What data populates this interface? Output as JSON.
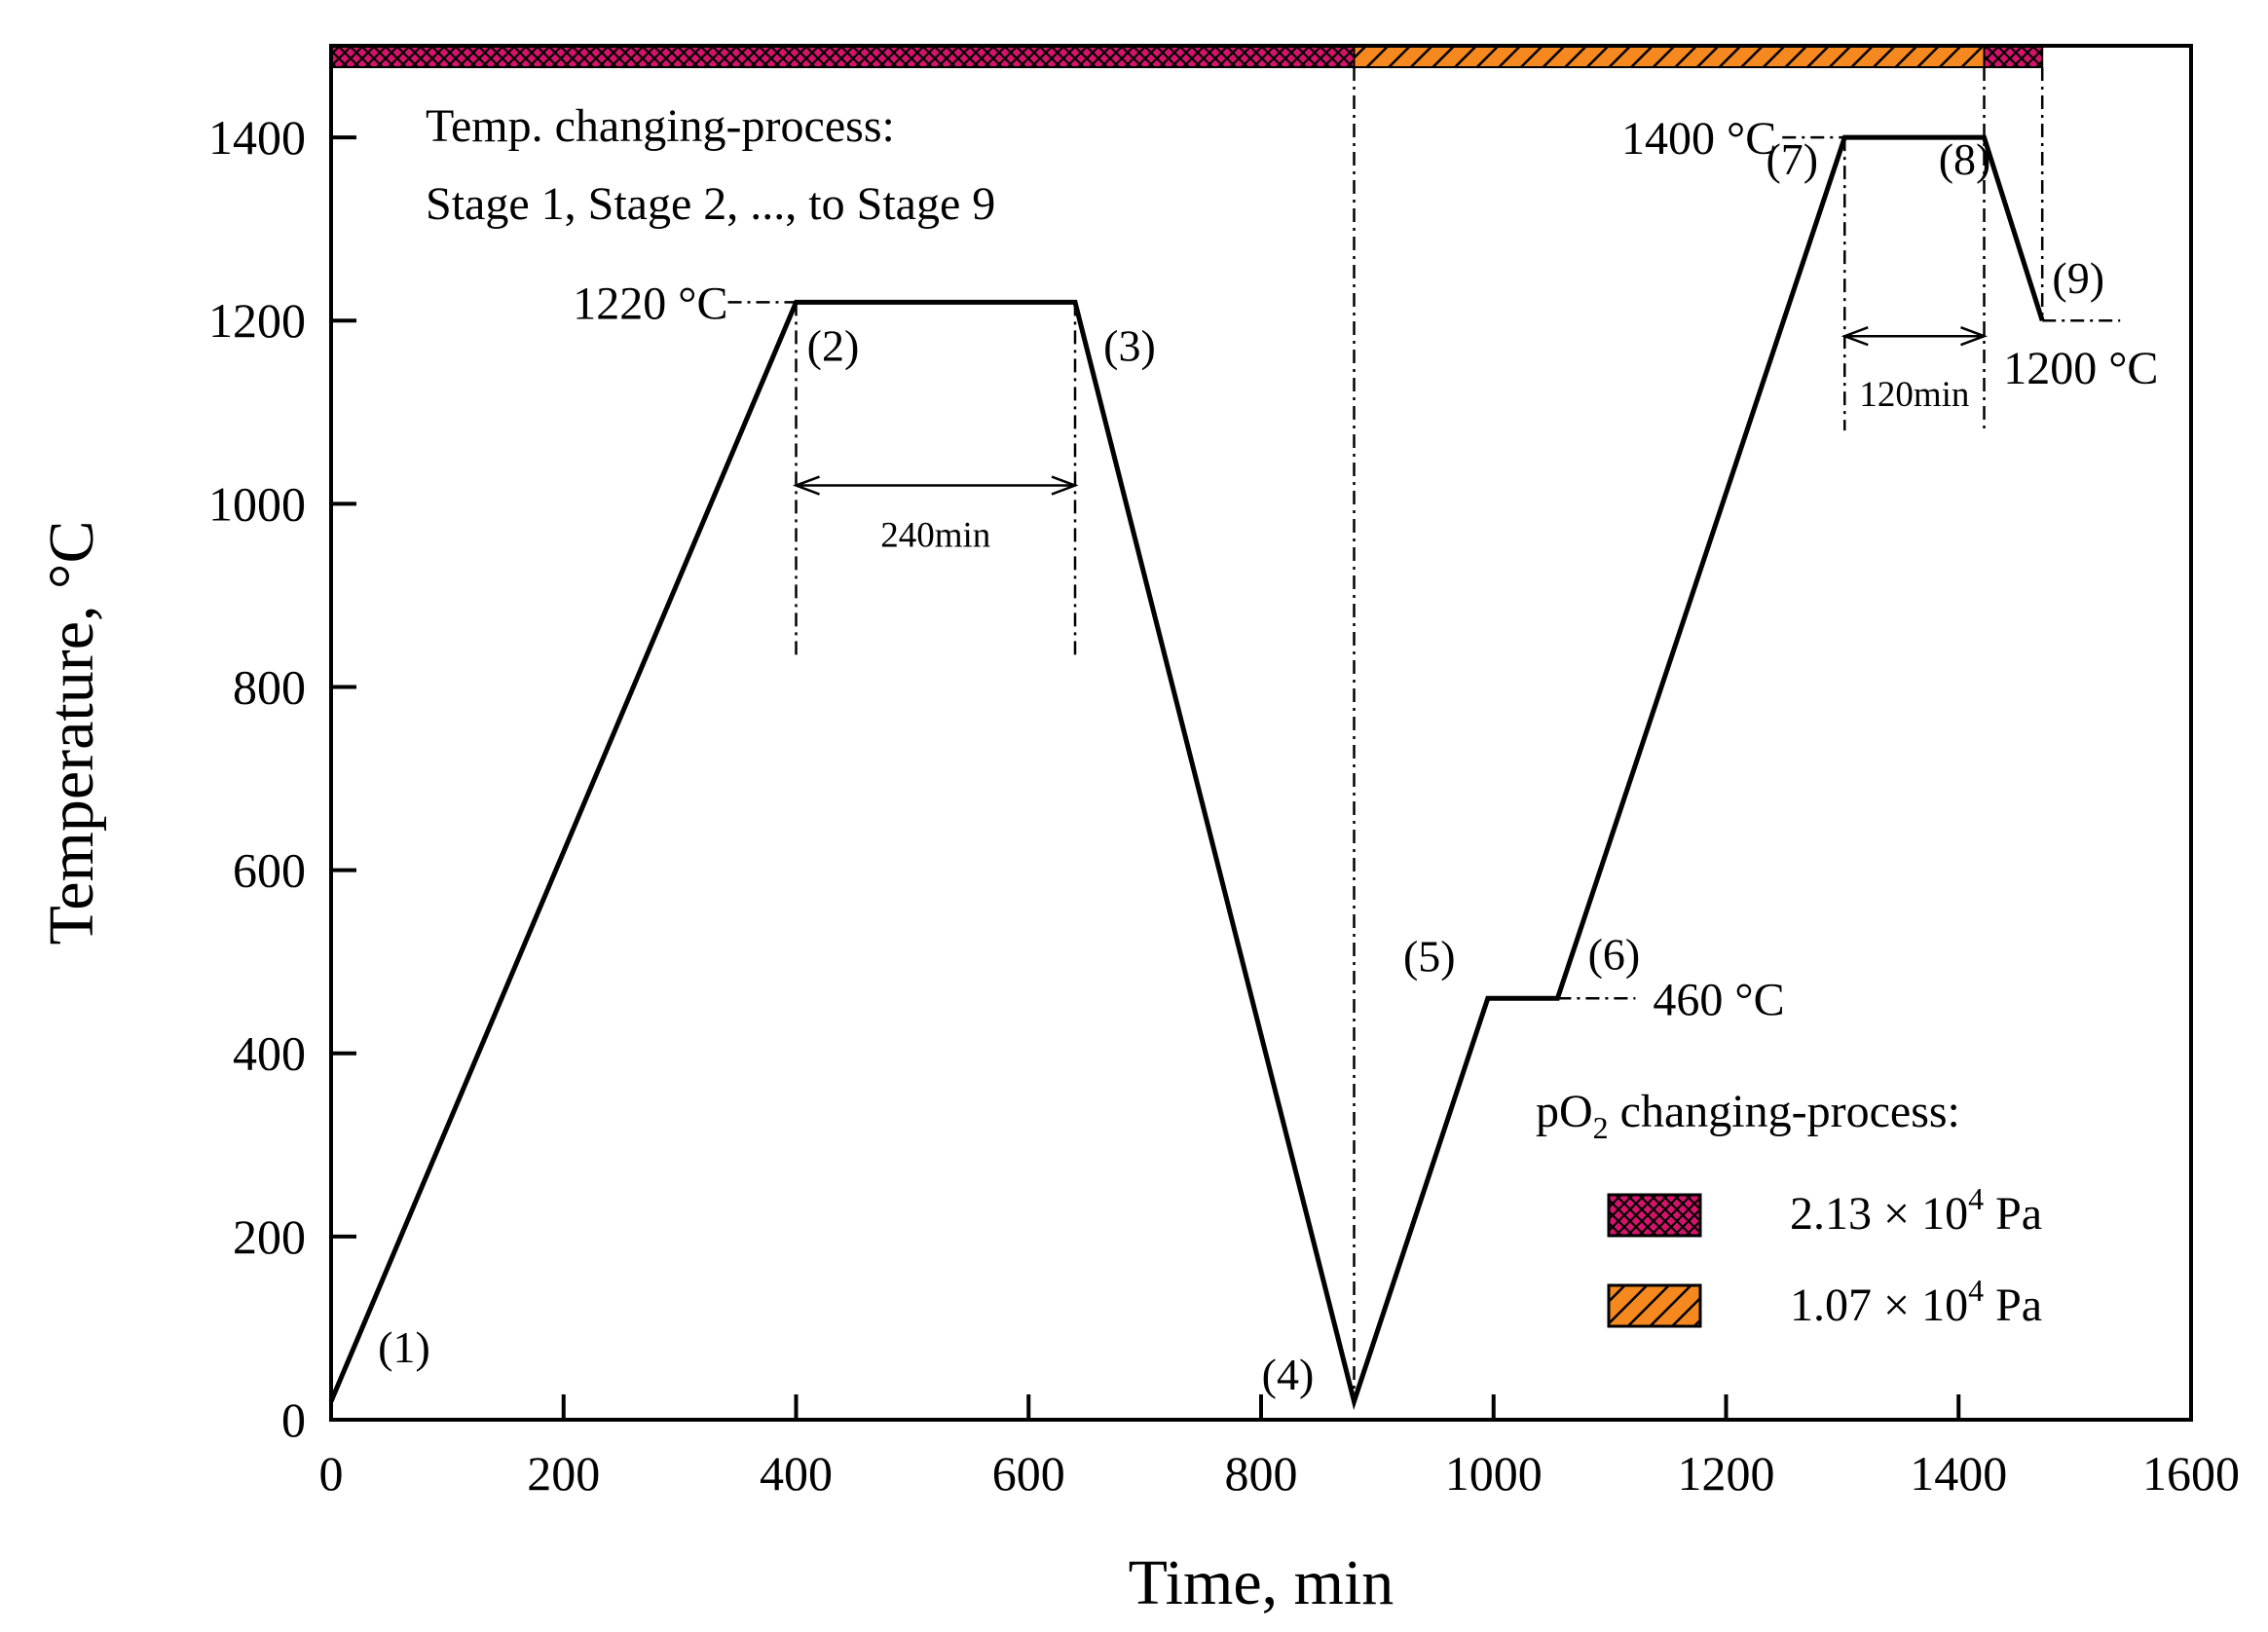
{
  "colors": {
    "hatch_a": "#d6136b",
    "hatch_b": "#f5891f",
    "line": "#000000"
  },
  "chart_data": {
    "type": "line",
    "xlabel": "Time, min",
    "ylabel": "Temperature, °C",
    "xlim": [
      0,
      1600
    ],
    "ylim": [
      0,
      1500
    ],
    "xticks": [
      0,
      200,
      400,
      600,
      800,
      1000,
      1200,
      1400,
      1600
    ],
    "yticks": [
      0,
      200,
      400,
      600,
      800,
      1000,
      1200,
      1400
    ],
    "grid": false,
    "series": [
      {
        "x": [
          0,
          400,
          640,
          880,
          995,
          1055,
          1302,
          1422,
          1472
        ],
        "y": [
          20,
          1220,
          1220,
          20,
          460,
          460,
          1400,
          1400,
          1200
        ]
      }
    ],
    "stage_labels": [
      {
        "text": "(1)",
        "x": 0,
        "y": 20
      },
      {
        "text": "(2)",
        "x": 400,
        "y": 1220
      },
      {
        "text": "(3)",
        "x": 640,
        "y": 1220
      },
      {
        "text": "(4)",
        "x": 880,
        "y": 20
      },
      {
        "text": "(5)",
        "x": 995,
        "y": 460
      },
      {
        "text": "(6)",
        "x": 1055,
        "y": 460
      },
      {
        "text": "(7)",
        "x": 1302,
        "y": 1400
      },
      {
        "text": "(8)",
        "x": 1422,
        "y": 1400
      },
      {
        "text": "(9)",
        "x": 1472,
        "y": 1200
      }
    ],
    "annotations": {
      "note_line1": "Temp. changing-process:",
      "note_line2": "Stage 1, Stage 2, ..., to Stage 9",
      "t1220": "1220 °C",
      "t1400": "1400 °C",
      "t1200": "1200 °C",
      "t460": "460 °C",
      "dur240": "240min",
      "dur120": "120min"
    },
    "po2_bands": [
      {
        "from": 0,
        "to": 880,
        "pattern": "a"
      },
      {
        "from": 880,
        "to": 1422,
        "pattern": "b"
      },
      {
        "from": 1422,
        "to": 1472,
        "pattern": "a"
      }
    ],
    "legend": {
      "title_prefix": "pO",
      "title_sub": "2",
      "title_suffix": " changing-process:",
      "entries": [
        {
          "pattern": "a",
          "mantissa": "2.13 × 10",
          "exp": "4",
          "unit": " Pa"
        },
        {
          "pattern": "b",
          "mantissa": "1.07 × 10",
          "exp": "4",
          "unit": " Pa"
        }
      ]
    }
  }
}
